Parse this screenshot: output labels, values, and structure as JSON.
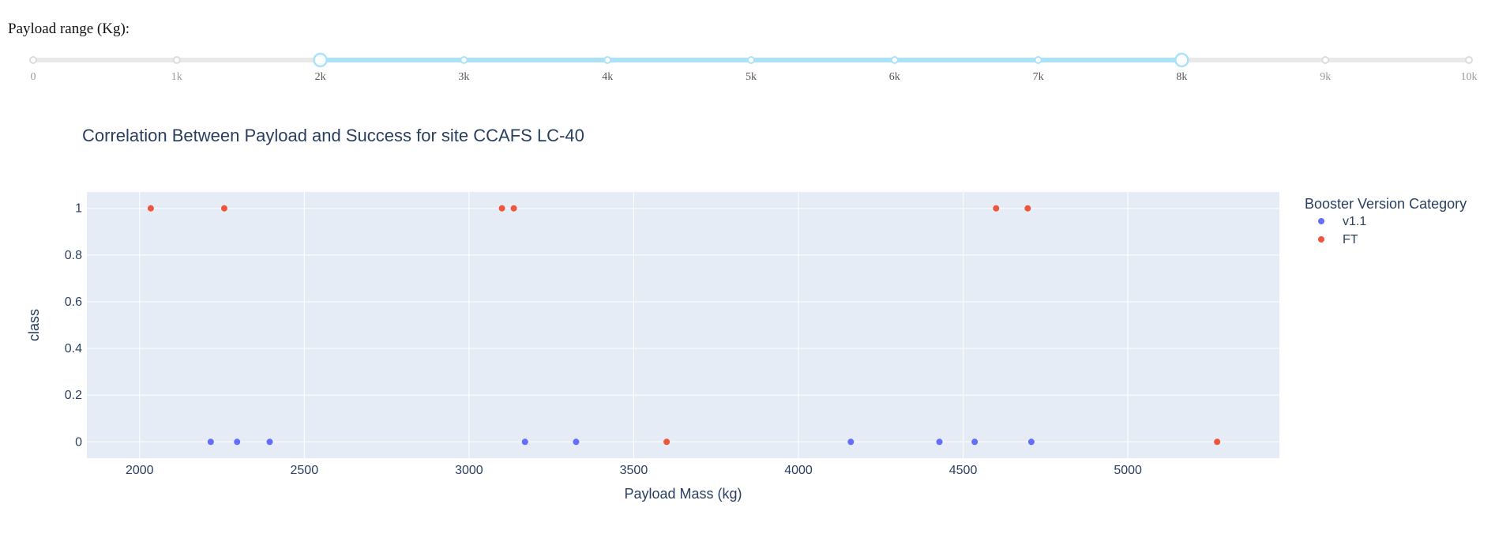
{
  "slider": {
    "label": "Payload range (Kg):",
    "min": 0,
    "max": 10000,
    "range": [
      2000,
      8000
    ],
    "ticks": [
      0,
      1000,
      2000,
      3000,
      4000,
      5000,
      6000,
      7000,
      8000,
      9000,
      10000
    ],
    "tick_labels": [
      "0",
      "1k",
      "2k",
      "3k",
      "4k",
      "5k",
      "6k",
      "7k",
      "8k",
      "9k",
      "10k"
    ],
    "track_color": "#e9e9e9",
    "active_color": "#abe2fb"
  },
  "chart_data": {
    "type": "scatter",
    "title": "Correlation Between Payload and Success for site CCAFS LC-40",
    "xlabel": "Payload Mass (kg)",
    "ylabel": "class",
    "xlim": [
      1840,
      5460
    ],
    "ylim": [
      -0.07,
      1.07
    ],
    "xticks": [
      2000,
      2500,
      3000,
      3500,
      4000,
      4500,
      5000
    ],
    "yticks": [
      0,
      0.2,
      0.4,
      0.6,
      0.8,
      1
    ],
    "ytick_labels": [
      "0",
      "0.2",
      "0.4",
      "0.6",
      "0.8",
      "1"
    ],
    "legend": {
      "title": "Booster Version Category",
      "position": "right"
    },
    "series": [
      {
        "name": "v1.1",
        "color": "#636efa",
        "points": [
          [
            2216,
            0
          ],
          [
            2296,
            0
          ],
          [
            2395,
            0
          ],
          [
            3170,
            0
          ],
          [
            3325,
            0
          ],
          [
            4159,
            0
          ],
          [
            4428,
            0
          ],
          [
            4535,
            0
          ],
          [
            4707,
            0
          ]
        ]
      },
      {
        "name": "FT",
        "color": "#ef553b",
        "points": [
          [
            2034,
            1
          ],
          [
            2257,
            1
          ],
          [
            3100,
            1
          ],
          [
            3136,
            1
          ],
          [
            3600,
            0
          ],
          [
            4600,
            1
          ],
          [
            4696,
            1
          ],
          [
            5271,
            0
          ]
        ]
      }
    ],
    "plot_bg": "#e5ecf6",
    "grid_color": "#ffffff"
  }
}
